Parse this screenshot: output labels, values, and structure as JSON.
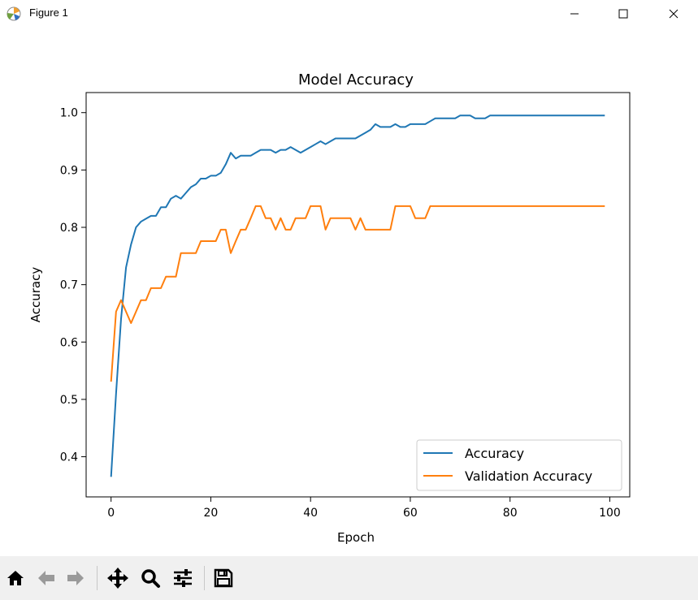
{
  "window": {
    "title": "Figure 1",
    "controls": [
      "minimize",
      "maximize",
      "close"
    ]
  },
  "toolbar": {
    "buttons": [
      "home-icon",
      "back-arrow-icon",
      "forward-arrow-icon",
      "pan-icon",
      "zoom-icon",
      "configure-subplots-icon",
      "save-icon"
    ]
  },
  "colors": {
    "accuracy": "#1f77b4",
    "validation": "#ff7f0e"
  },
  "chart_data": {
    "type": "line",
    "title": "Model Accuracy",
    "xlabel": "Epoch",
    "ylabel": "Accuracy",
    "xlim": [
      -5,
      104
    ],
    "ylim": [
      0.33,
      1.035
    ],
    "xticks": [
      0,
      20,
      40,
      60,
      80,
      100
    ],
    "yticks": [
      0.4,
      0.5,
      0.6,
      0.7,
      0.8,
      0.9,
      1.0
    ],
    "xtick_labels": [
      "0",
      "20",
      "40",
      "60",
      "80",
      "100"
    ],
    "ytick_labels": [
      "0.4",
      "0.5",
      "0.6",
      "0.7",
      "0.8",
      "0.9",
      "1.0"
    ],
    "legend": "lower-right",
    "grid": false,
    "series": [
      {
        "name": "Accuracy",
        "color": "#1f77b4",
        "values": [
          0.365,
          0.51,
          0.64,
          0.73,
          0.77,
          0.8,
          0.81,
          0.815,
          0.82,
          0.82,
          0.835,
          0.835,
          0.85,
          0.855,
          0.85,
          0.86,
          0.87,
          0.875,
          0.885,
          0.885,
          0.89,
          0.89,
          0.895,
          0.91,
          0.93,
          0.92,
          0.925,
          0.925,
          0.925,
          0.93,
          0.935,
          0.935,
          0.935,
          0.93,
          0.935,
          0.935,
          0.94,
          0.935,
          0.93,
          0.935,
          0.94,
          0.945,
          0.95,
          0.945,
          0.95,
          0.955,
          0.955,
          0.955,
          0.955,
          0.955,
          0.96,
          0.965,
          0.97,
          0.98,
          0.975,
          0.975,
          0.975,
          0.98,
          0.975,
          0.975,
          0.98,
          0.98,
          0.98,
          0.98,
          0.985,
          0.99,
          0.99,
          0.99,
          0.99,
          0.99,
          0.995,
          0.995,
          0.995,
          0.99,
          0.99,
          0.99,
          0.995,
          0.995,
          0.995,
          0.995,
          0.995,
          0.995,
          0.995,
          0.995,
          0.995,
          0.995,
          0.995,
          0.995,
          0.995,
          0.995,
          0.995,
          0.995,
          0.995,
          0.995,
          0.995,
          0.995,
          0.995,
          0.995,
          0.995,
          0.995
        ]
      },
      {
        "name": "Validation Accuracy",
        "color": "#ff7f0e",
        "values": [
          0.531,
          0.653,
          0.673,
          0.653,
          0.633,
          0.653,
          0.673,
          0.673,
          0.694,
          0.694,
          0.694,
          0.714,
          0.714,
          0.714,
          0.755,
          0.755,
          0.755,
          0.755,
          0.776,
          0.776,
          0.776,
          0.776,
          0.796,
          0.796,
          0.755,
          0.776,
          0.796,
          0.796,
          0.816,
          0.837,
          0.837,
          0.816,
          0.816,
          0.796,
          0.816,
          0.796,
          0.796,
          0.816,
          0.816,
          0.816,
          0.837,
          0.837,
          0.837,
          0.796,
          0.816,
          0.816,
          0.816,
          0.816,
          0.816,
          0.796,
          0.816,
          0.796,
          0.796,
          0.796,
          0.796,
          0.796,
          0.796,
          0.837,
          0.837,
          0.837,
          0.837,
          0.816,
          0.816,
          0.816,
          0.837,
          0.837,
          0.837,
          0.837,
          0.837,
          0.837,
          0.837,
          0.837,
          0.837,
          0.837,
          0.837,
          0.837,
          0.837,
          0.837,
          0.837,
          0.837,
          0.837,
          0.837,
          0.837,
          0.837,
          0.837,
          0.837,
          0.837,
          0.837,
          0.837,
          0.837,
          0.837,
          0.837,
          0.837,
          0.837,
          0.837,
          0.837,
          0.837,
          0.837,
          0.837,
          0.837
        ]
      }
    ]
  }
}
